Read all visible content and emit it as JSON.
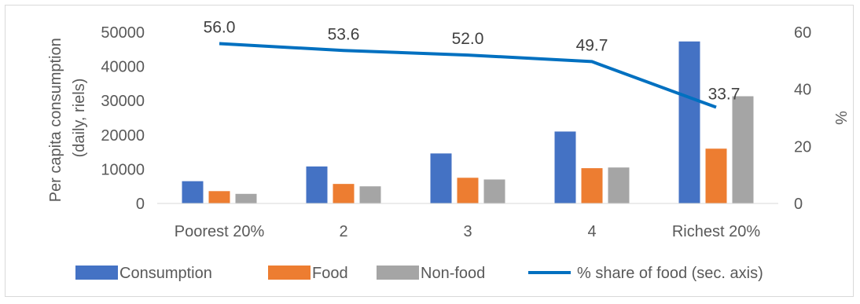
{
  "chart_data": {
    "type": "bar",
    "categories": [
      "Poorest 20%",
      "2",
      "3",
      "4",
      "Richest 20%"
    ],
    "series": [
      {
        "name": "Consumption",
        "values": [
          6500,
          10800,
          14600,
          21000,
          47300
        ],
        "color": "#4472c4"
      },
      {
        "name": "Food",
        "values": [
          3600,
          5700,
          7500,
          10300,
          16000
        ],
        "color": "#ed7d31"
      },
      {
        "name": "Non-food",
        "values": [
          2800,
          5000,
          7000,
          10500,
          31300
        ],
        "color": "#a5a5a5"
      }
    ],
    "line_series": {
      "name": "% share of food (sec. axis)",
      "values": [
        56.0,
        53.6,
        52.0,
        49.7,
        33.7
      ],
      "labels": [
        "56.0",
        "53.6",
        "52.0",
        "49.7",
        "33.7"
      ],
      "color": "#0070c0",
      "axis": "secondary"
    },
    "ylabel": "Per capita consumption (daily, riels)",
    "ylabel_lines": [
      "Per capita consumption",
      "(daily, riels)"
    ],
    "y2label": "%",
    "ylim": [
      0,
      50000
    ],
    "yticks": [
      "0",
      "10000",
      "20000",
      "30000",
      "40000",
      "50000"
    ],
    "y2lim": [
      0,
      60
    ],
    "y2ticks": [
      "0",
      "20",
      "40",
      "60"
    ],
    "grid": false,
    "legend_position": "bottom"
  }
}
